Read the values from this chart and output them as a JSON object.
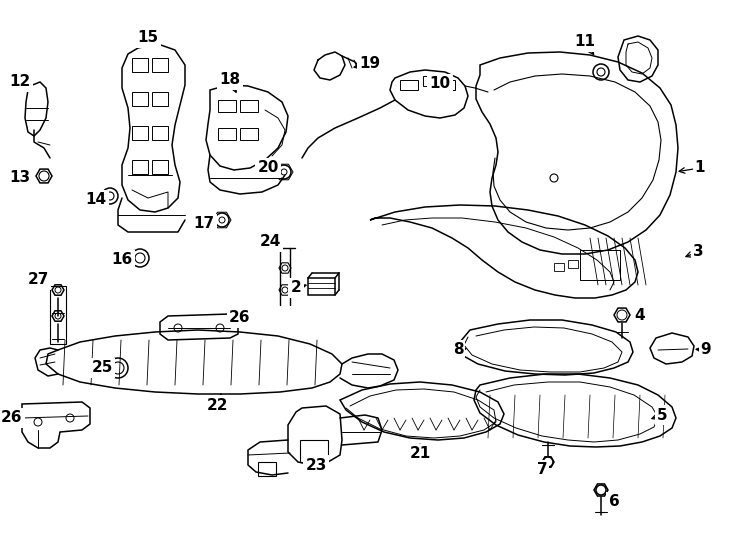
{
  "background_color": "#ffffff",
  "line_color": "#000000",
  "figsize": [
    7.34,
    5.4
  ],
  "dpi": 100,
  "label_fontsize": 11,
  "label_fontweight": "bold"
}
